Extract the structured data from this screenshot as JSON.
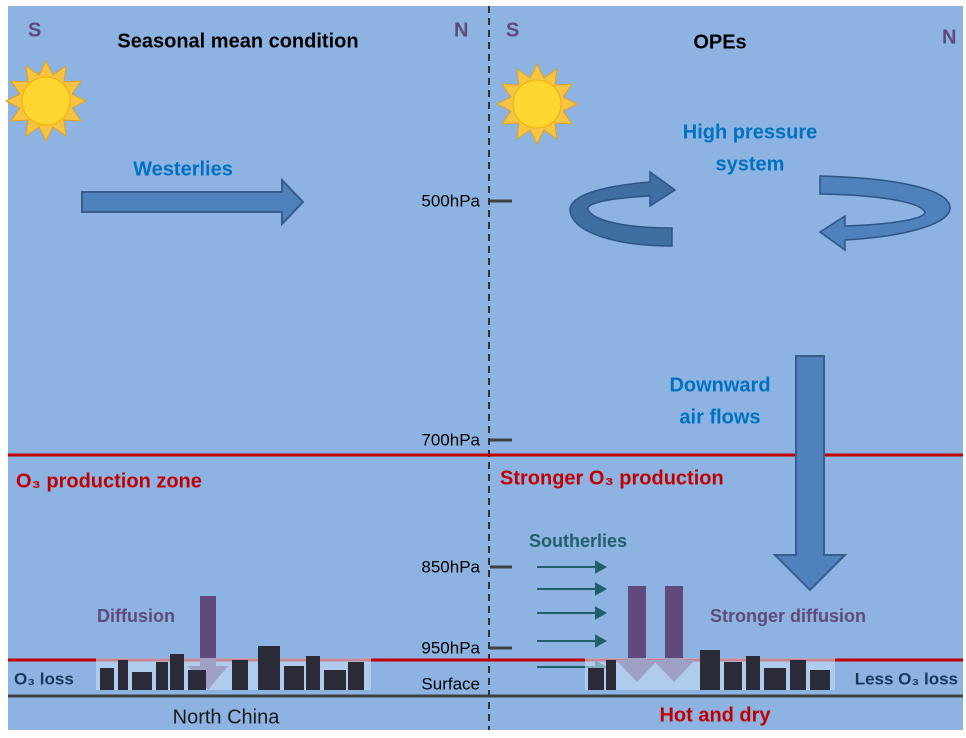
{
  "left_panel": {
    "south": "S",
    "north": "N",
    "title": "Seasonal mean condition",
    "westerlies": "Westerlies",
    "production_zone": "O₃ production zone",
    "diffusion": "Diffusion",
    "loss": "O₃ loss",
    "region": "North China"
  },
  "right_panel": {
    "south": "S",
    "north": "N",
    "title": "OPEs",
    "high_pressure": [
      "High pressure",
      "system"
    ],
    "downward": [
      "Downward",
      "air flows"
    ],
    "production": "Stronger O₃ production",
    "southerlies": "Southerlies",
    "diffusion": "Stronger diffusion",
    "loss": "Less O₃ loss",
    "condition": "Hot and dry"
  },
  "pressure_levels": [
    "500hPa",
    "700hPa",
    "850hPa",
    "950hPa",
    "Surface"
  ]
}
